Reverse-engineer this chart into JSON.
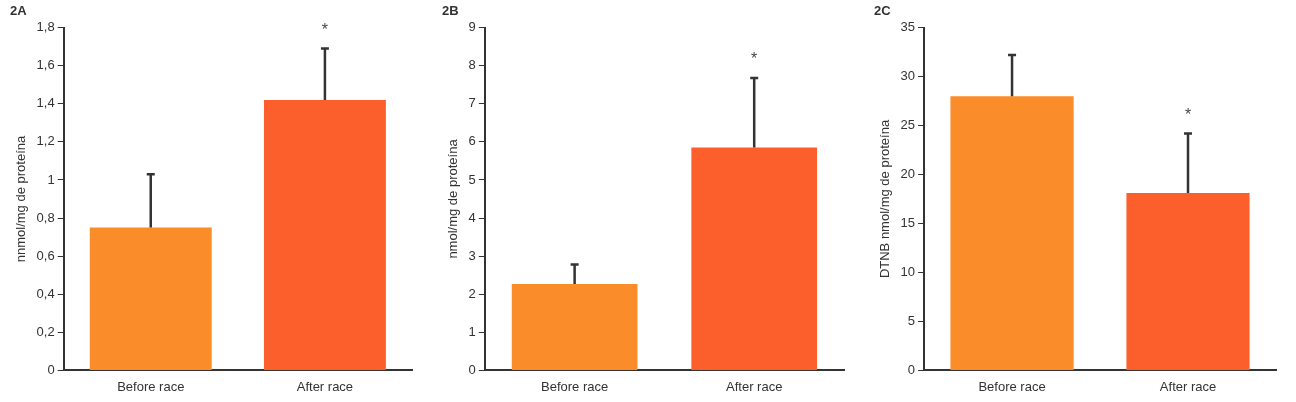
{
  "chart_data": [
    {
      "type": "bar",
      "title": "2A",
      "ylabel": "nnmol/mg de proteína",
      "categories": [
        "Before race",
        "After race"
      ],
      "values": [
        0.75,
        1.42
      ],
      "colors": [
        "#fb8c2a",
        "#fd5f2c"
      ],
      "errors": [
        [
          0.75,
          1.03
        ],
        [
          1.42,
          1.69
        ]
      ],
      "ylim": [
        0,
        1.8
      ],
      "yticks": [
        0,
        {
          "value": 0.2,
          "label": "0,2"
        },
        {
          "value": 0.4,
          "label": "0,4"
        },
        {
          "value": 0.6,
          "label": "0,6"
        },
        {
          "value": 0.8,
          "label": "0,8"
        },
        1,
        {
          "value": 1.2,
          "label": "1,2"
        },
        {
          "value": 1.4,
          "label": "1,4"
        },
        {
          "value": 1.6,
          "label": "1,6"
        },
        {
          "value": 1.8,
          "label": "1,8"
        }
      ],
      "annotations": [
        {
          "text": "*",
          "x": "After race",
          "y": 1.69
        }
      ],
      "grid": false,
      "legend": false
    },
    {
      "type": "bar",
      "title": "2B",
      "ylabel": "nmol/mg de proteína",
      "categories": [
        "Before race",
        "After race"
      ],
      "values": [
        2.27,
        5.85
      ],
      "colors": [
        "#fb8c2a",
        "#fd5f2c"
      ],
      "errors": [
        [
          2.27,
          2.78
        ],
        [
          5.85,
          7.68
        ]
      ],
      "ylim": [
        0,
        9
      ],
      "yticks": [
        0,
        1,
        2,
        3,
        4,
        5,
        6,
        7,
        8,
        9
      ],
      "annotations": [
        {
          "text": "*",
          "x": "After race",
          "y": 7.68
        }
      ],
      "grid": false,
      "legend": false
    },
    {
      "type": "bar",
      "title": "2C",
      "ylabel": "DTNB nmol/mg de proteína",
      "categories": [
        "Before race",
        "After race"
      ],
      "values": [
        28,
        18.1
      ],
      "colors": [
        "#fb8c2a",
        "#fd5f2c"
      ],
      "errors": [
        [
          28,
          32.2
        ],
        [
          18.1,
          24.2
        ]
      ],
      "ylim": [
        0,
        35
      ],
      "yticks": [
        0,
        5,
        10,
        15,
        20,
        25,
        30,
        35
      ],
      "annotations": [
        {
          "text": "*",
          "x": "After race",
          "y": 24.2
        }
      ],
      "grid": false,
      "legend": false
    }
  ]
}
